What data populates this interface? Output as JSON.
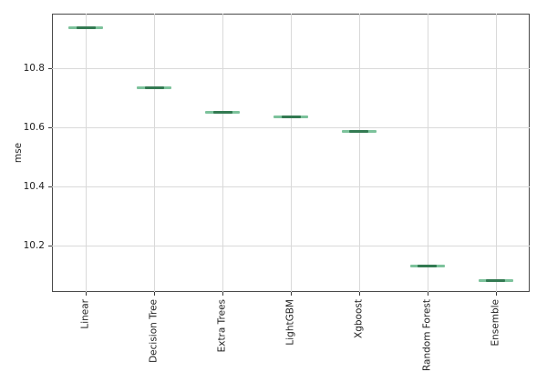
{
  "chart_data": {
    "type": "boxplot",
    "title": "",
    "xlabel": "",
    "ylabel": "mse",
    "categories": [
      "Linear",
      "Decision Tree",
      "Extra Trees",
      "LightGBM",
      "Xgboost",
      "Random Forest",
      "Ensemble"
    ],
    "values": [
      10.937,
      10.733,
      10.651,
      10.636,
      10.588,
      10.132,
      10.083
    ],
    "yticks": [
      "10.2",
      "10.4",
      "10.6",
      "10.8"
    ],
    "ytick_values": [
      10.2,
      10.4,
      10.6,
      10.8
    ],
    "ylim": [
      10.043,
      10.985
    ],
    "grid": true,
    "legend": "none",
    "x_label_rotation_deg": 90,
    "colors": {
      "box_line": "#7cc29b",
      "median_line": "#337a52",
      "grid_line": "#d9d9d9",
      "spine": "#4a4a4a",
      "tick_text": "#1f1f1f",
      "background": "#ffffff"
    }
  }
}
